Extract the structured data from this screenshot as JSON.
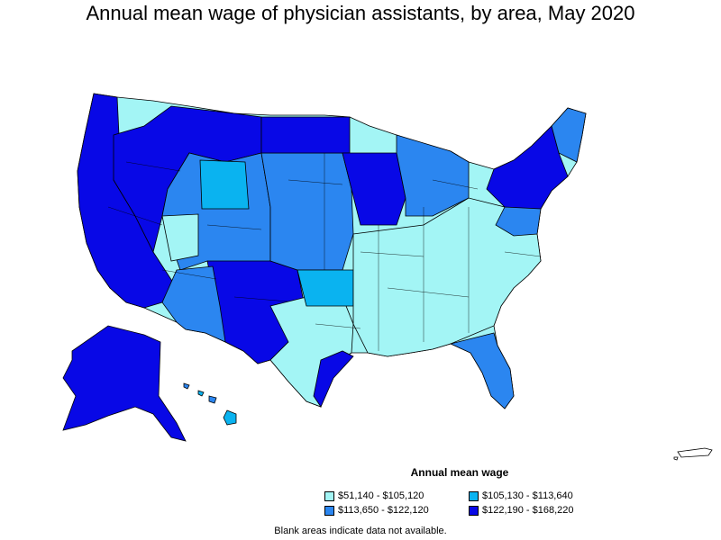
{
  "title": "Annual mean wage of physician assistants, by area, May 2020",
  "legend": {
    "title": "Annual mean wage",
    "items": [
      {
        "label": "$51,140 - $105,120",
        "color": "#a3f5f5"
      },
      {
        "label": "$105,130 - $113,640",
        "color": "#0ab3f0"
      },
      {
        "label": "$113,650 - $122,120",
        "color": "#2b86f0"
      },
      {
        "label": "$122,190 - $168,220",
        "color": "#0808e6"
      }
    ]
  },
  "footnote": "Blank areas indicate data not available."
}
